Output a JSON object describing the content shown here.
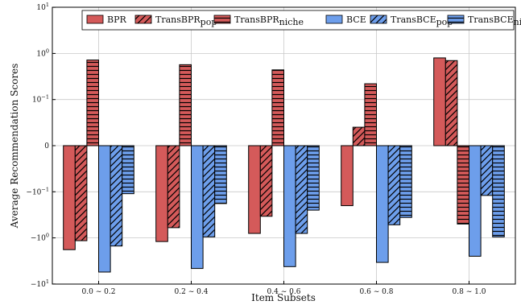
{
  "chart_data": {
    "type": "bar",
    "scale": "symlog",
    "title": "",
    "xlabel": "Item Subsets",
    "ylabel": "Average Recommendation Scores",
    "ylim": [
      -10,
      10
    ],
    "grid": true,
    "legend_position": "top",
    "y_ticks": [
      {
        "value": -10,
        "base": "−10",
        "exp": "1"
      },
      {
        "value": -1,
        "base": "−10",
        "exp": "0"
      },
      {
        "value": -0.1,
        "base": "−10",
        "exp": "−1"
      },
      {
        "value": 0,
        "base": "0",
        "exp": ""
      },
      {
        "value": 0.1,
        "base": "10",
        "exp": "−1"
      },
      {
        "value": 1,
        "base": "10",
        "exp": "0"
      },
      {
        "value": 10,
        "base": "10",
        "exp": "1"
      }
    ],
    "categories": [
      "0.0 ∼ 0.2",
      "0.2 ∼ 0.4",
      "0.4 ∼ 0.6",
      "0.6 ∼ 0.8",
      "0.8 ∼ 1.0"
    ],
    "series": [
      {
        "name": "BPR",
        "label_main": "BPR",
        "label_sub": "",
        "color": "#d45a5a",
        "hatch": "none",
        "values": [
          -1.8,
          -1.2,
          -0.8,
          -0.2,
          0.8
        ]
      },
      {
        "name": "TransBPRpop",
        "label_main": "TransBPR",
        "label_sub": "pop",
        "color": "#d45a5a",
        "hatch": "diag",
        "values": [
          -1.15,
          -0.6,
          -0.34,
          0.04,
          0.7
        ]
      },
      {
        "name": "TransBPRniche",
        "label_main": "TransBPR",
        "label_sub": "niche",
        "color": "#d45a5a",
        "hatch": "horiz",
        "values": [
          0.72,
          0.57,
          0.44,
          0.22,
          -0.5
        ]
      },
      {
        "name": "BCE",
        "label_main": "BCE",
        "label_sub": "",
        "color": "#6d9eeb",
        "hatch": "none",
        "values": [
          -5.5,
          -4.6,
          -4.2,
          -3.4,
          -2.5
        ]
      },
      {
        "name": "TransBCEpop",
        "label_main": "TransBCE",
        "label_sub": "pop",
        "color": "#6d9eeb",
        "hatch": "diag",
        "values": [
          -1.5,
          -0.95,
          -0.8,
          -0.52,
          -0.12
        ]
      },
      {
        "name": "TransBCEniche",
        "label_main": "TransBCE",
        "label_sub": "niche",
        "color": "#6d9eeb",
        "hatch": "horiz",
        "values": [
          -0.11,
          -0.18,
          -0.25,
          -0.36,
          -0.95
        ]
      }
    ]
  }
}
